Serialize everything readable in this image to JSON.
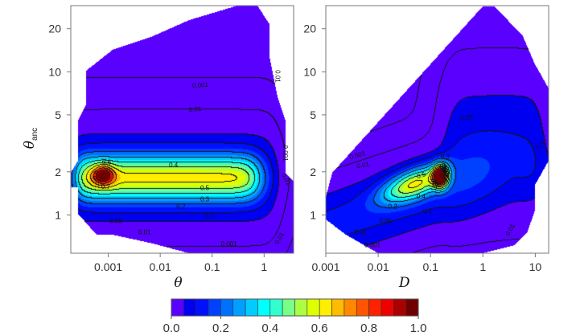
{
  "chart_data": [
    {
      "type": "heatmap",
      "subtype": "filled-contour",
      "panel": "left",
      "xlabel": "θ",
      "ylabel": "θ",
      "ylabel_sub": "anc",
      "xscale": "log",
      "yscale": "log",
      "xlim": [
        0.00019,
        3.7
      ],
      "ylim": [
        0.54,
        29
      ],
      "xticks": [
        {
          "v": 0.001,
          "label": "0.001"
        },
        {
          "v": 0.01,
          "label": "0.01"
        },
        {
          "v": 0.1,
          "label": "0.1"
        },
        {
          "v": 1,
          "label": "1"
        }
      ],
      "yticks": [
        {
          "v": 1,
          "label": "1"
        },
        {
          "v": 2,
          "label": "2"
        },
        {
          "v": 5,
          "label": "5"
        },
        {
          "v": 10,
          "label": "10"
        },
        {
          "v": 20,
          "label": "20"
        }
      ],
      "peak": {
        "x": 0.0008,
        "y": 1.9
      },
      "contour_labels": [
        {
          "text": "0.001",
          "x": 0.059,
          "y": 8.1,
          "rot": -5
        },
        {
          "text": "0.01",
          "x": 0.047,
          "y": 5.5,
          "rot": -5
        },
        {
          "text": "0.6",
          "x": 0.00093,
          "y": 2.34,
          "rot": 0
        },
        {
          "text": "0.4",
          "x": 0.018,
          "y": 2.24,
          "rot": 0
        },
        {
          "text": "0.8",
          "x": 0.00056,
          "y": 1.9,
          "rot": -80
        },
        {
          "text": "0.7",
          "x": 0.00089,
          "y": 1.58,
          "rot": 0
        },
        {
          "text": "0.5",
          "x": 0.072,
          "y": 1.55,
          "rot": 0
        },
        {
          "text": "0.3",
          "x": 0.072,
          "y": 1.29,
          "rot": 0
        },
        {
          "text": "0.2",
          "x": 0.025,
          "y": 1.15,
          "rot": 0
        },
        {
          "text": "0.1",
          "x": 0.089,
          "y": 1.0,
          "rot": 0
        },
        {
          "text": "0.05",
          "x": 0.0014,
          "y": 0.91,
          "rot": 0
        },
        {
          "text": "0.01",
          "x": 0.005,
          "y": 0.76,
          "rot": 0
        },
        {
          "text": "0.001",
          "x": 0.21,
          "y": 0.63,
          "rot": 0
        },
        {
          "text": "0.01",
          "x": 1.86,
          "y": 9.3,
          "rot": 90
        },
        {
          "text": "0.001",
          "x": 2.6,
          "y": 2.7,
          "rot": 90
        },
        {
          "text": "0.01",
          "x": 2.7,
          "y": 1.78,
          "rot": 60
        },
        {
          "text": "0.01",
          "x": 1.95,
          "y": 0.69,
          "rot": -60
        }
      ]
    },
    {
      "type": "heatmap",
      "subtype": "filled-contour",
      "panel": "right",
      "xlabel": "D",
      "xscale": "log",
      "yscale": "log",
      "xlim": [
        0.001,
        18
      ],
      "ylim": [
        0.54,
        29
      ],
      "xticks": [
        {
          "v": 0.001,
          "label": "0.001"
        },
        {
          "v": 0.01,
          "label": "0.01"
        },
        {
          "v": 0.1,
          "label": "0.1"
        },
        {
          "v": 1,
          "label": "1"
        },
        {
          "v": 10,
          "label": "10"
        }
      ],
      "yticks": [
        {
          "v": 1,
          "label": "1"
        },
        {
          "v": 2,
          "label": "2"
        },
        {
          "v": 5,
          "label": "5"
        },
        {
          "v": 10,
          "label": "10"
        },
        {
          "v": 20,
          "label": "20"
        }
      ],
      "peak": {
        "x": 0.15,
        "y": 1.86
      },
      "contour_labels": [
        {
          "text": "0.05",
          "x": 0.49,
          "y": 4.8,
          "rot": -5
        },
        {
          "text": "0.001",
          "x": 0.004,
          "y": 2.63,
          "rot": -15
        },
        {
          "text": "0.01",
          "x": 0.0051,
          "y": 2.24,
          "rot": -10
        },
        {
          "text": "0.3",
          "x": 0.19,
          "y": 2.57,
          "rot": 0
        },
        {
          "text": "0.5",
          "x": 0.066,
          "y": 1.9,
          "rot": -20
        },
        {
          "text": "0.8",
          "x": 0.17,
          "y": 1.95,
          "rot": -70
        },
        {
          "text": "0.4",
          "x": 0.066,
          "y": 1.35,
          "rot": 0
        },
        {
          "text": "0.2",
          "x": 0.019,
          "y": 1.15,
          "rot": 0
        },
        {
          "text": "0.1",
          "x": 0.087,
          "y": 1.07,
          "rot": -10
        },
        {
          "text": "0.05",
          "x": 0.0138,
          "y": 0.91,
          "rot": 0
        },
        {
          "text": "0.01",
          "x": 0.0046,
          "y": 0.76,
          "rot": 0
        },
        {
          "text": "0.001",
          "x": 0.0078,
          "y": 0.62,
          "rot": 0
        },
        {
          "text": "0.1",
          "x": 12.3,
          "y": 3.1,
          "rot": -60
        },
        {
          "text": "0.01",
          "x": 3.3,
          "y": 0.79,
          "rot": -60
        }
      ]
    }
  ],
  "contour_levels": [
    0.001,
    0.01,
    0.05,
    0.1,
    0.2,
    0.3,
    0.4,
    0.5,
    0.6,
    0.7,
    0.8,
    0.9
  ],
  "colorbar": {
    "min": 0,
    "max": 1,
    "step": 0.05,
    "tick_labels": [
      {
        "v": 0,
        "label": "0.0"
      },
      {
        "v": 0.2,
        "label": "0.2"
      },
      {
        "v": 0.4,
        "label": "0.4"
      },
      {
        "v": 0.6,
        "label": "0.6"
      },
      {
        "v": 0.8,
        "label": "0.8"
      },
      {
        "v": 1,
        "label": "1.0"
      }
    ],
    "colors": [
      "#5a00ff",
      "#0000f0",
      "#0010ff",
      "#0040ff",
      "#0070ff",
      "#00a0ff",
      "#00ccff",
      "#00ffff",
      "#33ffcc",
      "#77ff88",
      "#aaff44",
      "#ddff00",
      "#ffee00",
      "#ffbb00",
      "#ff8800",
      "#ff5500",
      "#ff2200",
      "#ee0000",
      "#aa0000",
      "#700000"
    ]
  }
}
